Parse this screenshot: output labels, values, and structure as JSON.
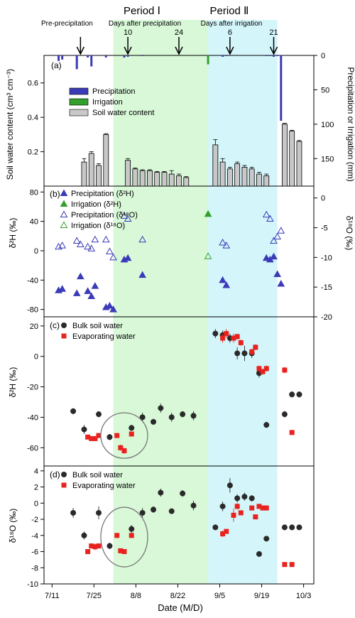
{
  "figure": {
    "period1_label": "Period Ⅰ",
    "period2_label": "Period Ⅱ",
    "pre_label": "Pre-precipitation",
    "after_precip_label": "Days after precipitation",
    "after_irrig_label": "Days after irrigation",
    "arrow_labels": [
      "10",
      "24",
      "6",
      "21"
    ],
    "x_label": "Date (M/D)",
    "x_ticks": [
      "7/11",
      "7/25",
      "8/8",
      "8/22",
      "9/5",
      "9/19",
      "10/3"
    ],
    "colors": {
      "precip": "#3b3bb8",
      "irrig": "#33a02c",
      "soil_bar": "#c8c8c8",
      "red": "#e8231f",
      "dark": "#2a2a2a",
      "period1_bg": "#d8f8d8",
      "period2_bg": "#d4f6fb"
    }
  },
  "chart_data": [
    {
      "panel": "(a)",
      "type": "bar",
      "ylabel_left": "Soil water content (cm³ cm⁻³)",
      "ylabel_right": "Precipitation or Irrigation (mm)",
      "ylim_left": [
        0,
        0.76
      ],
      "yticks_left": [
        "0.2",
        "0.4",
        "0.6"
      ],
      "ylim_right_reversed": [
        0,
        190
      ],
      "yticks_right": [
        "0",
        "50",
        "100",
        "150"
      ],
      "legend": [
        "Precipitation",
        "Irrigation",
        "Soil water content"
      ],
      "precipitation": {
        "x": [
          9,
          10,
          14,
          17,
          18,
          22,
          27,
          28,
          32,
          54,
          55,
          66,
          67,
          68,
          69,
          70
        ],
        "mm": [
          8,
          6,
          20,
          3,
          16,
          3,
          3,
          2,
          1,
          2,
          1,
          1,
          1,
          2,
          1,
          95
        ]
      },
      "irrigation": {
        "x": [
          50
        ],
        "mm": [
          13
        ]
      },
      "soil_water_content": {
        "x": [
          16,
          18,
          20,
          22,
          28,
          30,
          32,
          34,
          36,
          38,
          40,
          42,
          44,
          52,
          54,
          56,
          58,
          60,
          62,
          64,
          66,
          71,
          73,
          75
        ],
        "values": [
          0.14,
          0.19,
          0.12,
          0.3,
          0.15,
          0.1,
          0.09,
          0.09,
          0.08,
          0.08,
          0.07,
          0.06,
          0.05,
          0.24,
          0.14,
          0.1,
          0.13,
          0.11,
          0.1,
          0.07,
          0.06,
          0.36,
          0.32,
          0.26
        ],
        "error": [
          0.02,
          0.01,
          0.01,
          0.005,
          0.01,
          0.005,
          0.005,
          0.005,
          0.005,
          0.005,
          0.02,
          0.01,
          0.005,
          0.03,
          0.02,
          0.01,
          0.01,
          0.01,
          0.01,
          0.01,
          0.01,
          0.005,
          0.005,
          0.005
        ]
      }
    },
    {
      "panel": "(b)",
      "type": "scatter",
      "ylabel_left": "δ²H (‰)",
      "ylabel_right": "δ¹⁸O (‰)",
      "ylim_left": [
        -90,
        88
      ],
      "yticks_left": [
        "-80",
        "-40",
        "0",
        "40",
        "80"
      ],
      "ylim_right": [
        -20,
        2
      ],
      "yticks_right": [
        "-20",
        "-15",
        "-10",
        "-5",
        "0"
      ],
      "legend": [
        "Precipitation (δ²H)",
        "Irrigation (δ²H)",
        "Precipitation (δ¹⁸O)",
        "Irrigation (δ¹⁸O)"
      ],
      "precip_d2H": {
        "x": [
          9,
          10,
          14,
          15,
          17,
          18,
          19,
          22,
          23,
          24,
          27,
          28,
          32,
          54,
          55,
          66,
          67,
          68,
          69,
          70
        ],
        "y": [
          -54,
          -52,
          -58,
          -35,
          -55,
          -62,
          -48,
          -77,
          -75,
          -80,
          -12,
          -10,
          -33,
          -40,
          -47,
          -10,
          -12,
          -8,
          -32,
          -45
        ]
      },
      "irrig_d2H": {
        "x": [
          50
        ],
        "y": [
          50
        ]
      },
      "precip_d18O": {
        "x": [
          9,
          10,
          14,
          15,
          17,
          18,
          19,
          22,
          23,
          24,
          27,
          28,
          32,
          54,
          55,
          66,
          67,
          68,
          69,
          70
        ],
        "y": [
          -8.2,
          -8.0,
          -7.2,
          -7.8,
          -8.2,
          -8.5,
          -7.0,
          -7.0,
          -9.0,
          -10.0,
          -3.0,
          -3.5,
          -7.0,
          -7.5,
          -8.0,
          -2.8,
          -3.5,
          -7.2,
          -6.5,
          -5.5
        ]
      },
      "irrig_d18O": {
        "x": [
          50
        ],
        "y": [
          -9.8
        ]
      }
    },
    {
      "panel": "(c)",
      "type": "scatter",
      "ylabel": "δ²H (‰)",
      "ylim": [
        -72,
        26
      ],
      "yticks": [
        "-60",
        "-40",
        "-20",
        "0",
        "20"
      ],
      "legend": [
        "Bulk soil water",
        "Evaporating water"
      ],
      "bulk_soil_water": {
        "x": [
          13,
          16,
          20,
          23,
          29,
          32,
          35,
          37,
          40,
          43,
          46,
          52,
          54,
          56,
          58,
          60,
          62,
          64,
          66,
          71,
          73,
          75
        ],
        "y": [
          -36,
          -48,
          -38,
          -53,
          -47,
          -40,
          -43,
          -34,
          -40,
          -38,
          -39,
          15,
          14,
          12,
          2,
          2,
          2,
          -11,
          -45,
          -38,
          -25,
          -25
        ],
        "error": [
          2,
          3,
          2,
          2,
          2,
          3,
          2,
          3,
          3,
          2,
          3,
          3,
          3,
          3,
          4,
          5,
          3,
          3,
          2,
          2,
          2,
          2
        ]
      },
      "evaporating_water": {
        "x": [
          17,
          18,
          19,
          20,
          25,
          26,
          27,
          29,
          54,
          55,
          57,
          58,
          59,
          62,
          63,
          64,
          65,
          66,
          71,
          73
        ],
        "y": [
          -53,
          -54,
          -54,
          -52,
          -52,
          -60,
          -62,
          -51,
          12,
          15,
          12,
          13,
          9,
          3,
          6,
          -8,
          -10,
          -8,
          -9,
          -50
        ],
        "error": [
          1,
          1,
          1,
          1,
          1,
          2,
          2,
          1,
          3,
          3,
          3,
          2,
          2,
          2,
          2,
          2,
          2,
          2,
          2,
          1
        ]
      }
    },
    {
      "panel": "(d)",
      "type": "scatter",
      "ylabel": "δ¹⁸O (‰)",
      "ylim": [
        -10,
        4.6
      ],
      "yticks": [
        "-10",
        "-8",
        "-6",
        "-4",
        "-2",
        "0",
        "2",
        "4"
      ],
      "legend": [
        "Bulk soil water",
        "Evaporating water"
      ],
      "bulk_soil_water": {
        "x": [
          13,
          16,
          20,
          23,
          29,
          32,
          35,
          37,
          40,
          43,
          46,
          52,
          54,
          56,
          58,
          60,
          62,
          64,
          66,
          71,
          73,
          75
        ],
        "y": [
          -1.2,
          -4.0,
          -1.2,
          -5.3,
          -3.2,
          -1.2,
          -0.8,
          1.3,
          -1.0,
          1.2,
          -0.3,
          -3.0,
          -0.4,
          2.2,
          0.6,
          0.8,
          0.6,
          -6.3,
          -4.4,
          -3.0,
          -3.0,
          -3.0
        ],
        "error": [
          0.6,
          0.5,
          0.8,
          0.4,
          0.5,
          0.6,
          0.4,
          0.5,
          0.3,
          0.4,
          0.6,
          0.3,
          0.6,
          0.9,
          0.5,
          0.5,
          0.4,
          0.3,
          0.3,
          0.3,
          0.3,
          0.3
        ]
      },
      "evaporating_water": {
        "x": [
          17,
          18,
          19,
          20,
          25,
          26,
          27,
          29,
          54,
          55,
          57,
          58,
          59,
          62,
          63,
          64,
          65,
          66,
          71,
          73
        ],
        "y": [
          -6.0,
          -5.3,
          -5.4,
          -5.3,
          -4.0,
          -5.9,
          -6.0,
          -4.0,
          -3.8,
          -3.5,
          -1.5,
          -0.4,
          -1.2,
          -0.6,
          -1.7,
          -0.4,
          -0.6,
          -0.6,
          -7.6,
          -7.6
        ],
        "error": [
          0.2,
          0.3,
          0.4,
          0.3,
          0.2,
          0.2,
          0.2,
          0.2,
          0.4,
          0.3,
          0.8,
          0.4,
          0.3,
          0.3,
          0.2,
          0.3,
          0.3,
          0.3,
          0.2,
          0.2
        ]
      }
    }
  ]
}
